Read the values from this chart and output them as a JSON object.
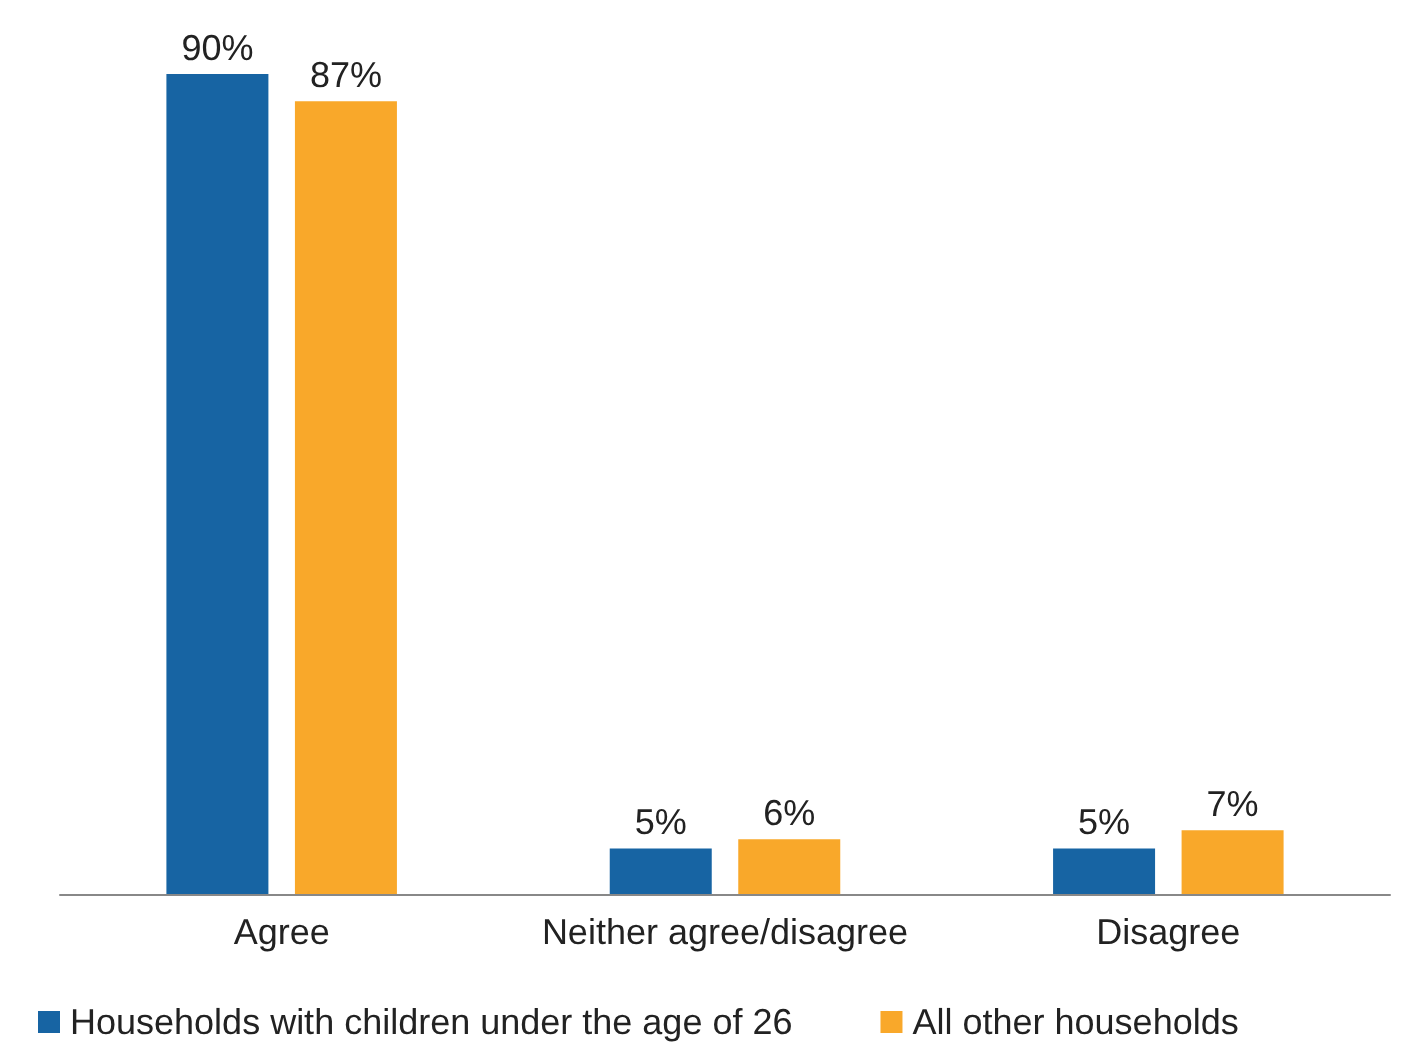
{
  "chart_data": {
    "type": "bar",
    "categories": [
      "Agree",
      "Neither agree/disagree",
      "Disagree"
    ],
    "series": [
      {
        "name": "Households with children under the age of 26",
        "color": "#1764a3",
        "values": [
          90,
          5,
          5
        ],
        "value_labels": [
          "90%",
          "5%",
          "5%"
        ]
      },
      {
        "name": "All other households",
        "color": "#f9a82a",
        "values": [
          87,
          6,
          7
        ],
        "value_labels": [
          "87%",
          "6%",
          "7%"
        ]
      }
    ],
    "legend": "bottom"
  }
}
